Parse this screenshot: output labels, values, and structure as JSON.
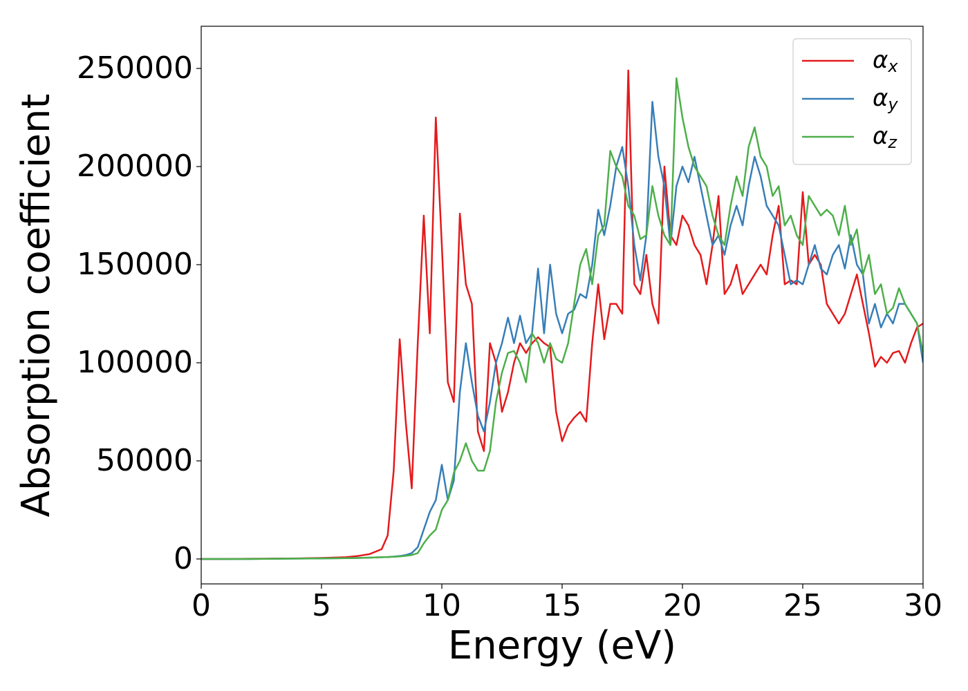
{
  "chart_data": {
    "type": "line",
    "xlabel": "Energy (eV)",
    "ylabel": "Absorption coefficient",
    "x": [
      0,
      1,
      2,
      3,
      4,
      5,
      6,
      6.5,
      7,
      7.5,
      7.75,
      8,
      8.25,
      8.5,
      8.75,
      9,
      9.25,
      9.5,
      9.75,
      10,
      10.25,
      10.5,
      10.75,
      11,
      11.25,
      11.5,
      11.75,
      12,
      12.25,
      12.5,
      12.75,
      13,
      13.25,
      13.5,
      13.75,
      14,
      14.25,
      14.5,
      14.75,
      15,
      15.25,
      15.5,
      15.75,
      16,
      16.25,
      16.5,
      16.75,
      17,
      17.25,
      17.5,
      17.75,
      18,
      18.25,
      18.5,
      18.75,
      19,
      19.25,
      19.5,
      19.75,
      20,
      20.25,
      20.5,
      20.75,
      21,
      21.25,
      21.5,
      21.75,
      22,
      22.25,
      22.5,
      22.75,
      23,
      23.25,
      23.5,
      23.75,
      24,
      24.25,
      24.5,
      24.75,
      25,
      25.25,
      25.5,
      25.75,
      26,
      26.25,
      26.5,
      26.75,
      27,
      27.25,
      27.5,
      27.75,
      28,
      28.25,
      28.5,
      28.75,
      29,
      29.25,
      29.5,
      29.75,
      30
    ],
    "series": [
      {
        "name": "αx",
        "color": "#e41a1c",
        "values": [
          0,
          0,
          100,
          200,
          300,
          500,
          900,
          1500,
          2500,
          5000,
          12000,
          45000,
          112000,
          70000,
          36000,
          110000,
          175000,
          115000,
          225000,
          160000,
          90000,
          80000,
          176000,
          140000,
          130000,
          65000,
          55000,
          110000,
          100000,
          75000,
          85000,
          100000,
          110000,
          105000,
          110000,
          113000,
          110000,
          108000,
          75000,
          60000,
          68000,
          72000,
          75000,
          70000,
          110000,
          140000,
          112000,
          130000,
          130000,
          125000,
          249000,
          140000,
          135000,
          155000,
          130000,
          120000,
          200000,
          165000,
          160000,
          175000,
          170000,
          160000,
          155000,
          140000,
          160000,
          185000,
          135000,
          140000,
          150000,
          135000,
          140000,
          145000,
          150000,
          145000,
          165000,
          180000,
          140000,
          142000,
          140000,
          187000,
          150000,
          155000,
          150000,
          130000,
          125000,
          120000,
          125000,
          135000,
          145000,
          130000,
          115000,
          98000,
          103000,
          100000,
          105000,
          106000,
          100000,
          110000,
          118000,
          120000
        ]
      },
      {
        "name": "αy",
        "color": "#377eb8",
        "values": [
          0,
          0,
          0,
          100,
          200,
          300,
          400,
          500,
          700,
          900,
          1000,
          1200,
          1500,
          2000,
          3000,
          6000,
          15000,
          24000,
          30000,
          48000,
          30000,
          40000,
          85000,
          110000,
          90000,
          73000,
          65000,
          80000,
          100000,
          110000,
          123000,
          110000,
          124000,
          110000,
          115000,
          148000,
          115000,
          150000,
          125000,
          115000,
          125000,
          127000,
          135000,
          133000,
          150000,
          178000,
          165000,
          180000,
          200000,
          210000,
          190000,
          160000,
          142000,
          165000,
          233000,
          205000,
          190000,
          160000,
          190000,
          200000,
          192000,
          205000,
          190000,
          175000,
          160000,
          165000,
          155000,
          170000,
          180000,
          170000,
          190000,
          205000,
          195000,
          180000,
          175000,
          170000,
          155000,
          140000,
          142000,
          140000,
          150000,
          160000,
          148000,
          145000,
          155000,
          160000,
          148000,
          165000,
          150000,
          145000,
          120000,
          130000,
          118000,
          125000,
          120000,
          130000,
          130000,
          125000,
          120000,
          100000
        ]
      },
      {
        "name": "αz",
        "color": "#4daf4a",
        "values": [
          0,
          0,
          0,
          100,
          200,
          300,
          400,
          500,
          700,
          900,
          1000,
          1100,
          1300,
          1600,
          2000,
          3000,
          8000,
          12000,
          15000,
          25000,
          30000,
          44000,
          50000,
          59000,
          50000,
          45000,
          45000,
          55000,
          80000,
          95000,
          105000,
          106000,
          100000,
          90000,
          115000,
          110000,
          100000,
          110000,
          102000,
          100000,
          110000,
          130000,
          150000,
          158000,
          140000,
          165000,
          170000,
          208000,
          200000,
          195000,
          180000,
          175000,
          163000,
          165000,
          190000,
          175000,
          165000,
          160000,
          245000,
          225000,
          210000,
          200000,
          195000,
          190000,
          175000,
          165000,
          160000,
          180000,
          195000,
          185000,
          210000,
          220000,
          205000,
          200000,
          185000,
          190000,
          170000,
          175000,
          165000,
          160000,
          185000,
          180000,
          175000,
          178000,
          175000,
          165000,
          180000,
          160000,
          168000,
          145000,
          155000,
          135000,
          140000,
          125000,
          128000,
          138000,
          130000,
          125000,
          120000,
          105000
        ]
      }
    ],
    "xlim": [
      0,
      30
    ],
    "xticks": [
      0,
      5,
      10,
      15,
      20,
      25,
      30
    ],
    "ylim": [
      -12700,
      271500
    ],
    "yticks": [
      0,
      50000,
      100000,
      150000,
      200000,
      250000
    ],
    "legend": "upper right",
    "grid": false
  }
}
